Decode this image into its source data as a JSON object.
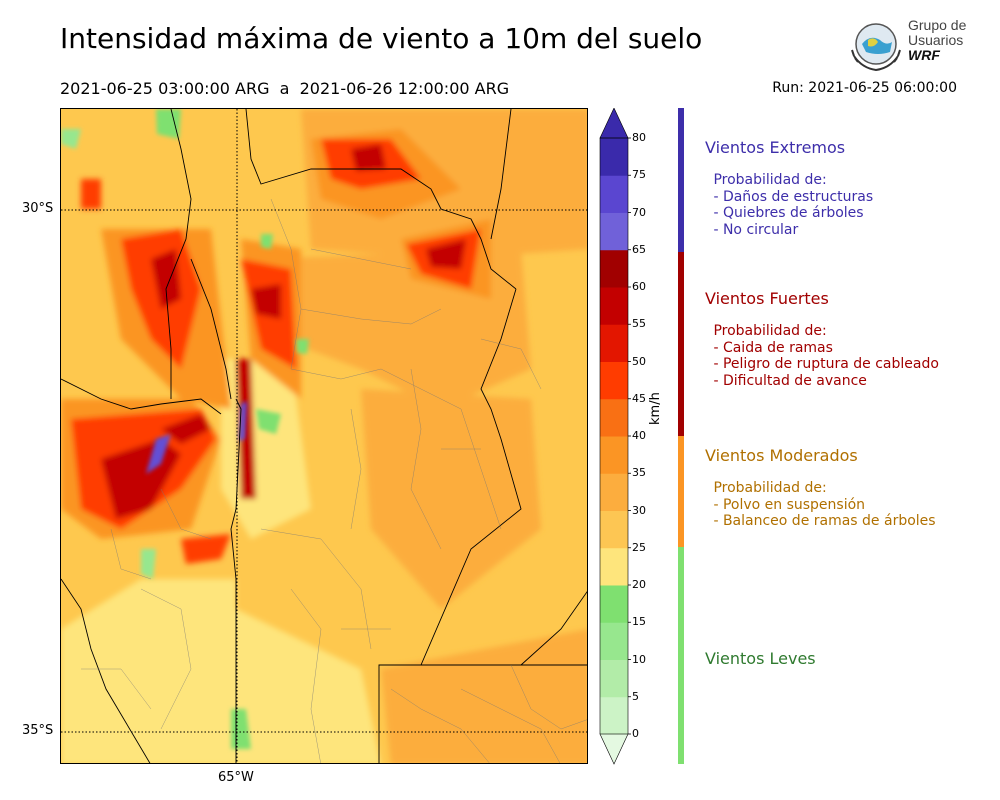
{
  "title": "Intensidad máxima de viento a 10m del suelo",
  "subtitle": "2021-06-25 03:00:00 ARG  a  2021-06-26 12:00:00 ARG",
  "run": "Run: 2021-06-25 06:00:00",
  "logo": {
    "line1": "Grupo de",
    "line2": "Usuarios",
    "line3": "WRF"
  },
  "map": {
    "lat_labels": [
      "30°S",
      "35°S"
    ],
    "lon_labels": [
      "65°W"
    ]
  },
  "colorbar": {
    "unit": "km/h",
    "ticks": [
      "0",
      "5",
      "10",
      "15",
      "20",
      "25",
      "30",
      "35",
      "40",
      "45",
      "50",
      "55",
      "60",
      "65",
      "70",
      "75",
      "80"
    ],
    "colors": [
      "#e4f9e1",
      "#ccf3c6",
      "#b2eca8",
      "#97e78e",
      "#7fe070",
      "#fee57c",
      "#fdc653",
      "#fcad3e",
      "#fb9524",
      "#f97014",
      "#ff3c00",
      "#e31600",
      "#c30000",
      "#a10000",
      "#7061d9",
      "#5a46d0",
      "#3a2aab"
    ]
  },
  "categories": [
    {
      "title": "Vientos Extremos",
      "color": "#3d2eaa",
      "desc": " Probabilidad de:\n - Daños de estructuras\n - Quiebres de árboles\n - No circular"
    },
    {
      "title": "Vientos Fuertes",
      "color": "#a10000",
      "desc": " Probabilidad de:\n - Caida de ramas\n - Peligro de ruptura de cableado\n - Dificultad de avance"
    },
    {
      "title": "Vientos Moderados",
      "color": "#b07000",
      "desc": " Probabilidad de:\n - Polvo en suspensión\n - Balanceo de ramas de árboles"
    },
    {
      "title": "Vientos Leves",
      "color": "#2f7a2f",
      "desc": ""
    }
  ]
}
